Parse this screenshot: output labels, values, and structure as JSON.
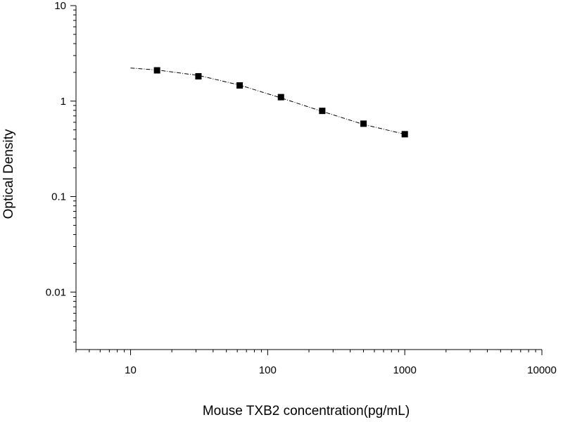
{
  "chart_data": {
    "type": "scatter",
    "title": "",
    "xlabel": "Mouse TXB2 concentration(pg/mL)",
    "ylabel": "Optical Density",
    "x_scale": "log",
    "y_scale": "log",
    "xlim": [
      4,
      10000
    ],
    "ylim": [
      0.0025,
      10
    ],
    "grid": false,
    "legend": "none",
    "x_tick_labels": [
      "10",
      "100",
      "1000",
      "10000"
    ],
    "x_tick_values": [
      10,
      100,
      1000,
      10000
    ],
    "y_tick_labels": [
      "0.01",
      "0.1",
      "1",
      "10"
    ],
    "y_tick_values": [
      0.01,
      0.1,
      1,
      10
    ],
    "series": [
      {
        "marker": "square",
        "color": "#000000",
        "x": [
          15.6,
          31.25,
          62.5,
          125,
          250,
          500,
          1000
        ],
        "y": [
          2.1,
          1.82,
          1.46,
          1.1,
          0.79,
          0.58,
          0.45
        ]
      }
    ],
    "fit_curve": {
      "style": "dashed",
      "color": "#000000",
      "x": [
        10,
        15.6,
        31.25,
        62.5,
        125,
        250,
        500,
        1000
      ],
      "y": [
        2.22,
        2.12,
        1.86,
        1.47,
        1.08,
        0.78,
        0.57,
        0.45
      ]
    }
  }
}
